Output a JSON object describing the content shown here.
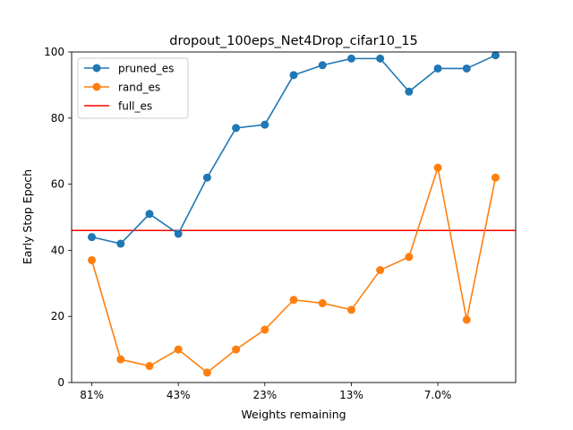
{
  "chart_data": {
    "type": "line",
    "title": "dropout_100eps_Net4Drop_cifar10_15",
    "xlabel": "Weights remaining",
    "ylabel": "Early Stop Epoch",
    "ylim": [
      0,
      100
    ],
    "yticks": [
      0,
      20,
      40,
      60,
      80,
      100
    ],
    "x_tick_positions": [
      0,
      3,
      6,
      9,
      12
    ],
    "x_tick_labels": [
      "81%",
      "43%",
      "23%",
      "13%",
      "7.0%"
    ],
    "legend_position": "top-left",
    "grid": false,
    "series": [
      {
        "name": "pruned_es",
        "color": "#1f77b4",
        "marker": "circle",
        "values": [
          44,
          42,
          51,
          45,
          62,
          77,
          78,
          93,
          96,
          98,
          98,
          88,
          95,
          95,
          99
        ]
      },
      {
        "name": "rand_es",
        "color": "#ff7f0e",
        "marker": "circle",
        "values": [
          37,
          7,
          5,
          10,
          3,
          10,
          16,
          25,
          24,
          22,
          34,
          38,
          65,
          19,
          62
        ]
      }
    ],
    "hlines": [
      {
        "name": "full_es",
        "color": "#ff0000",
        "y": 46
      }
    ]
  }
}
